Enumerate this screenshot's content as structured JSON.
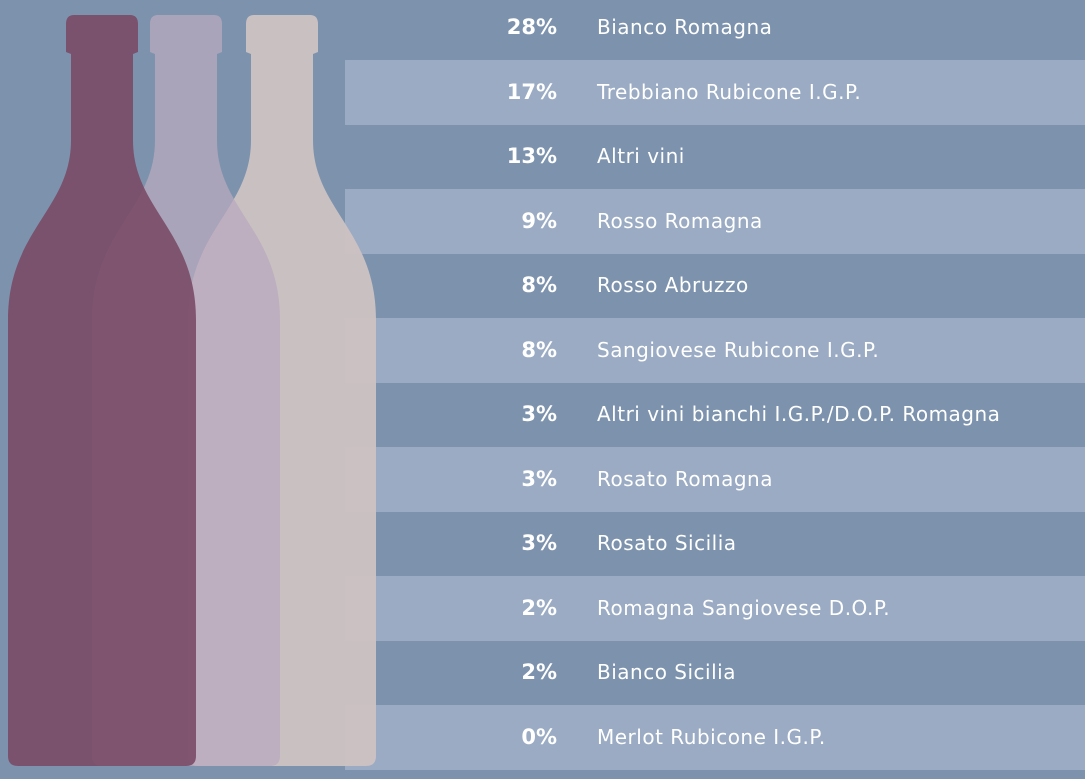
{
  "rows": [
    {
      "share": "28%",
      "name": "Bianco Romagna"
    },
    {
      "share": "17%",
      "name": "Trebbiano Rubicone I.G.P."
    },
    {
      "share": "13%",
      "name": "Altri vini"
    },
    {
      "share": "9%",
      "name": "Rosso Romagna"
    },
    {
      "share": "8%",
      "name": "Rosso Abruzzo"
    },
    {
      "share": "8%",
      "name": "Sangiovese Rubicone I.G.P."
    },
    {
      "share": "3%",
      "name": "Altri vini bianchi I.G.P./D.O.P. Romagna"
    },
    {
      "share": "3%",
      "name": "Rosato Romagna"
    },
    {
      "share": "3%",
      "name": "Rosato Sicilia"
    },
    {
      "share": "2%",
      "name": "Romagna Sangiovese D.O.P."
    },
    {
      "share": "2%",
      "name": "Bianco Sicilia"
    },
    {
      "share": "0%",
      "name": "Merlot Rubicone I.G.P."
    }
  ]
}
